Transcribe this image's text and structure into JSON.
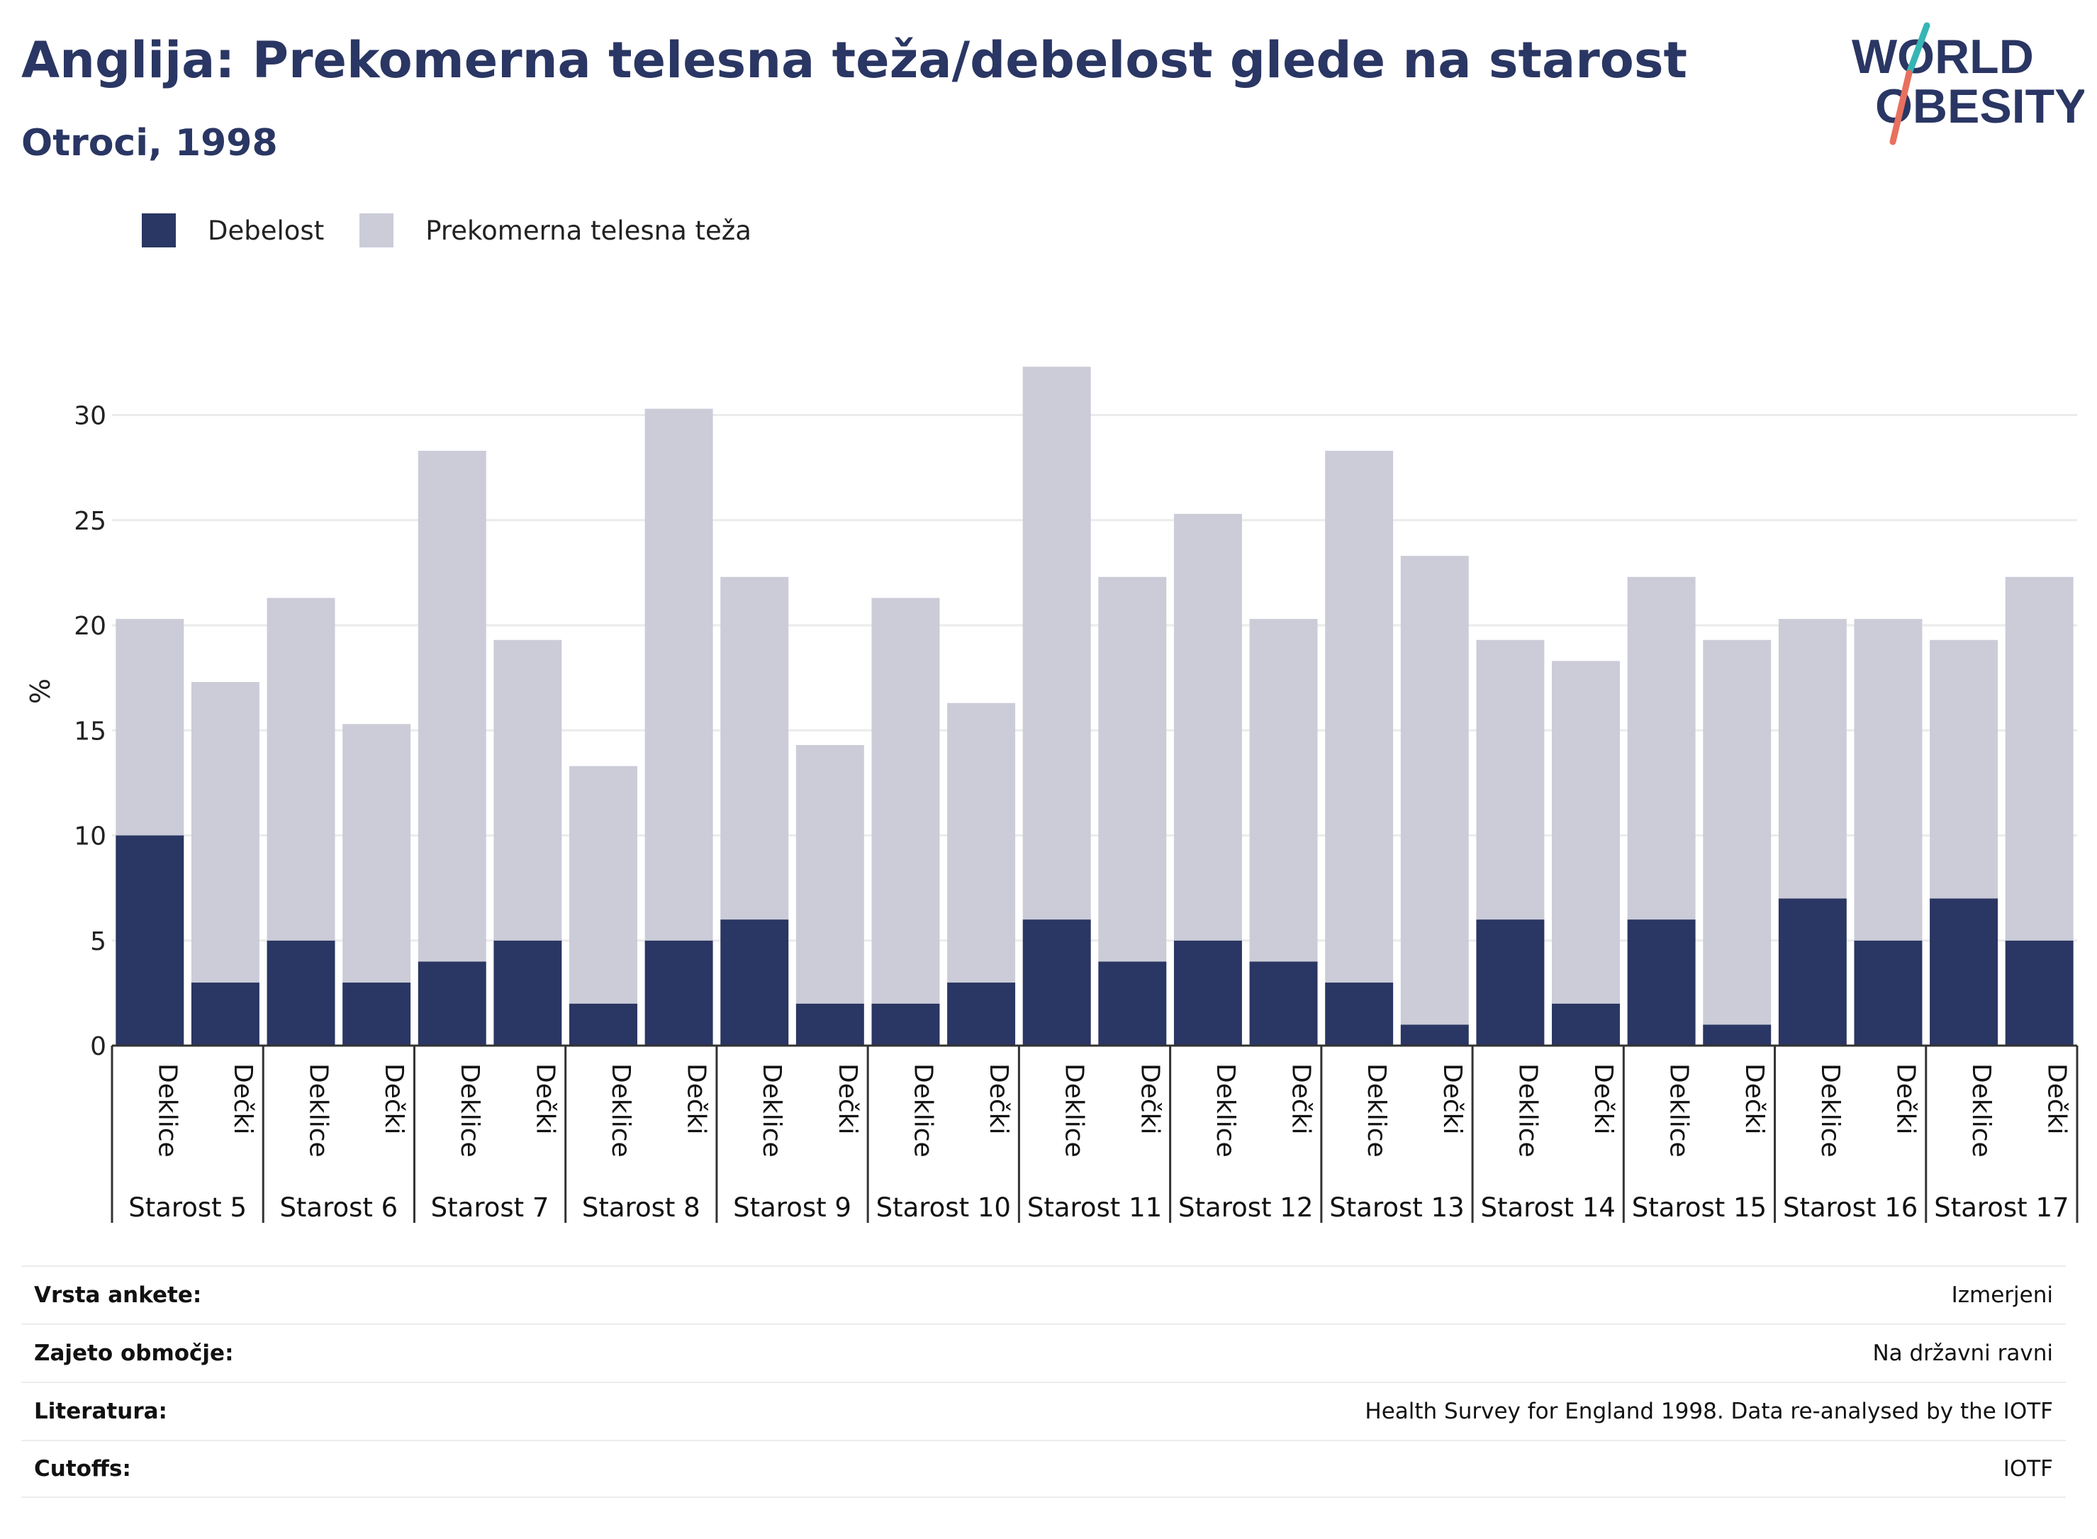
{
  "title": "Anglija: Prekomerna telesna teža/debelost glede na starost",
  "subtitle": "Otroci, 1998",
  "logo": {
    "line1": "WORLD",
    "line2": "OBESITY"
  },
  "colors": {
    "obesity": "#2a3663",
    "overweight": "#cbccd8",
    "text": "#2a3663",
    "grid": "#ebebeb"
  },
  "chart_data": {
    "type": "bar",
    "stacked": true,
    "ylabel": "%",
    "ylim": [
      0,
      32.5
    ],
    "yticks": [
      0,
      5,
      10,
      15,
      20,
      25,
      30
    ],
    "legend_position": "top-left",
    "grid": true,
    "groups": [
      "Starost 5",
      "Starost 6",
      "Starost 7",
      "Starost 8",
      "Starost 9",
      "Starost 10",
      "Starost 11",
      "Starost 12",
      "Starost 13",
      "Starost 14",
      "Starost 15",
      "Starost 16",
      "Starost 17"
    ],
    "subcategories": [
      "Deklice",
      "Dečki"
    ],
    "series": [
      {
        "name": "Debelost",
        "values": [
          [
            10,
            3
          ],
          [
            5,
            3
          ],
          [
            4,
            5
          ],
          [
            2,
            5
          ],
          [
            6,
            2
          ],
          [
            2,
            3
          ],
          [
            6,
            4
          ],
          [
            5,
            4
          ],
          [
            3,
            1
          ],
          [
            6,
            2
          ],
          [
            6,
            1
          ],
          [
            7,
            5
          ],
          [
            7,
            5
          ]
        ]
      },
      {
        "name": "Prekomerna telesna teža",
        "values": [
          [
            10.3,
            14.3
          ],
          [
            16.3,
            12.3
          ],
          [
            24.3,
            14.3
          ],
          [
            11.3,
            25.3
          ],
          [
            16.3,
            12.3
          ],
          [
            19.3,
            13.3
          ],
          [
            26.3,
            18.3
          ],
          [
            20.3,
            16.3
          ],
          [
            25.3,
            22.3
          ],
          [
            13.3,
            16.3
          ],
          [
            16.3,
            18.3
          ],
          [
            13.3,
            15.3
          ],
          [
            12.3,
            17.3
          ]
        ]
      }
    ]
  },
  "meta": [
    {
      "label": "Vrsta ankete:",
      "value": "Izmerjeni"
    },
    {
      "label": "Zajeto območje:",
      "value": "Na državni ravni"
    },
    {
      "label": "Literatura:",
      "value": "Health Survey for England 1998. Data re-analysed by the IOTF"
    },
    {
      "label": "Cutoffs:",
      "value": "IOTF"
    }
  ]
}
